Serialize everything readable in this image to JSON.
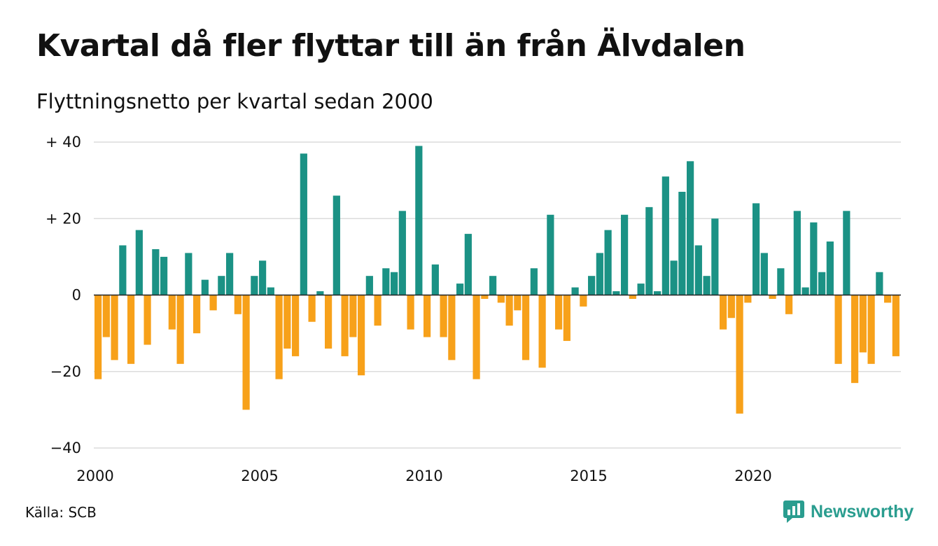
{
  "title": "Kvartal då fler flyttar till än från Älvdalen",
  "subtitle": "Flyttningsnetto per kvartal sedan 2000",
  "source": "Källa: SCB",
  "brand": {
    "name": "Newsworthy",
    "icon": "newsworthy-logo-icon",
    "color": "#2a9d8f"
  },
  "chart_data": {
    "type": "bar",
    "title": "Kvartal då fler flyttar till än från Älvdalen",
    "subtitle": "Flyttningsnetto per kvartal sedan 2000",
    "x_start": "2000 Q1",
    "x_ticks": [
      {
        "label": "2000",
        "index": 0
      },
      {
        "label": "2005",
        "index": 20
      },
      {
        "label": "2010",
        "index": 40
      },
      {
        "label": "2015",
        "index": 60
      },
      {
        "label": "2020",
        "index": 80
      }
    ],
    "y_ticks": [
      {
        "label": "+ 40",
        "value": 40
      },
      {
        "label": "+ 20",
        "value": 20
      },
      {
        "label": "0",
        "value": 0
      },
      {
        "label": "−20",
        "value": -20
      },
      {
        "label": "−40",
        "value": -40
      }
    ],
    "ylim": [
      -40,
      40
    ],
    "grid": true,
    "colors": {
      "positive": "#1b9285",
      "negative": "#f7a11a"
    },
    "values": [
      -22,
      -11,
      -17,
      13,
      -18,
      17,
      -13,
      12,
      10,
      -9,
      -18,
      11,
      -10,
      4,
      -4,
      5,
      11,
      -5,
      -30,
      5,
      9,
      2,
      -22,
      -14,
      -16,
      37,
      -7,
      1,
      -14,
      26,
      -16,
      -11,
      -21,
      5,
      -8,
      7,
      6,
      22,
      -9,
      39,
      -11,
      8,
      -11,
      -17,
      3,
      16,
      -22,
      -1,
      5,
      -2,
      -8,
      -4,
      -17,
      7,
      -19,
      21,
      -9,
      -12,
      2,
      -3,
      5,
      11,
      17,
      1,
      21,
      -1,
      3,
      23,
      1,
      31,
      9,
      27,
      35,
      13,
      5,
      20,
      -9,
      -6,
      -31,
      -2,
      24,
      11,
      -1,
      7,
      -5,
      22,
      2,
      19,
      6,
      14,
      -18,
      22,
      -23,
      -15,
      -18,
      6,
      -2,
      -16
    ]
  }
}
